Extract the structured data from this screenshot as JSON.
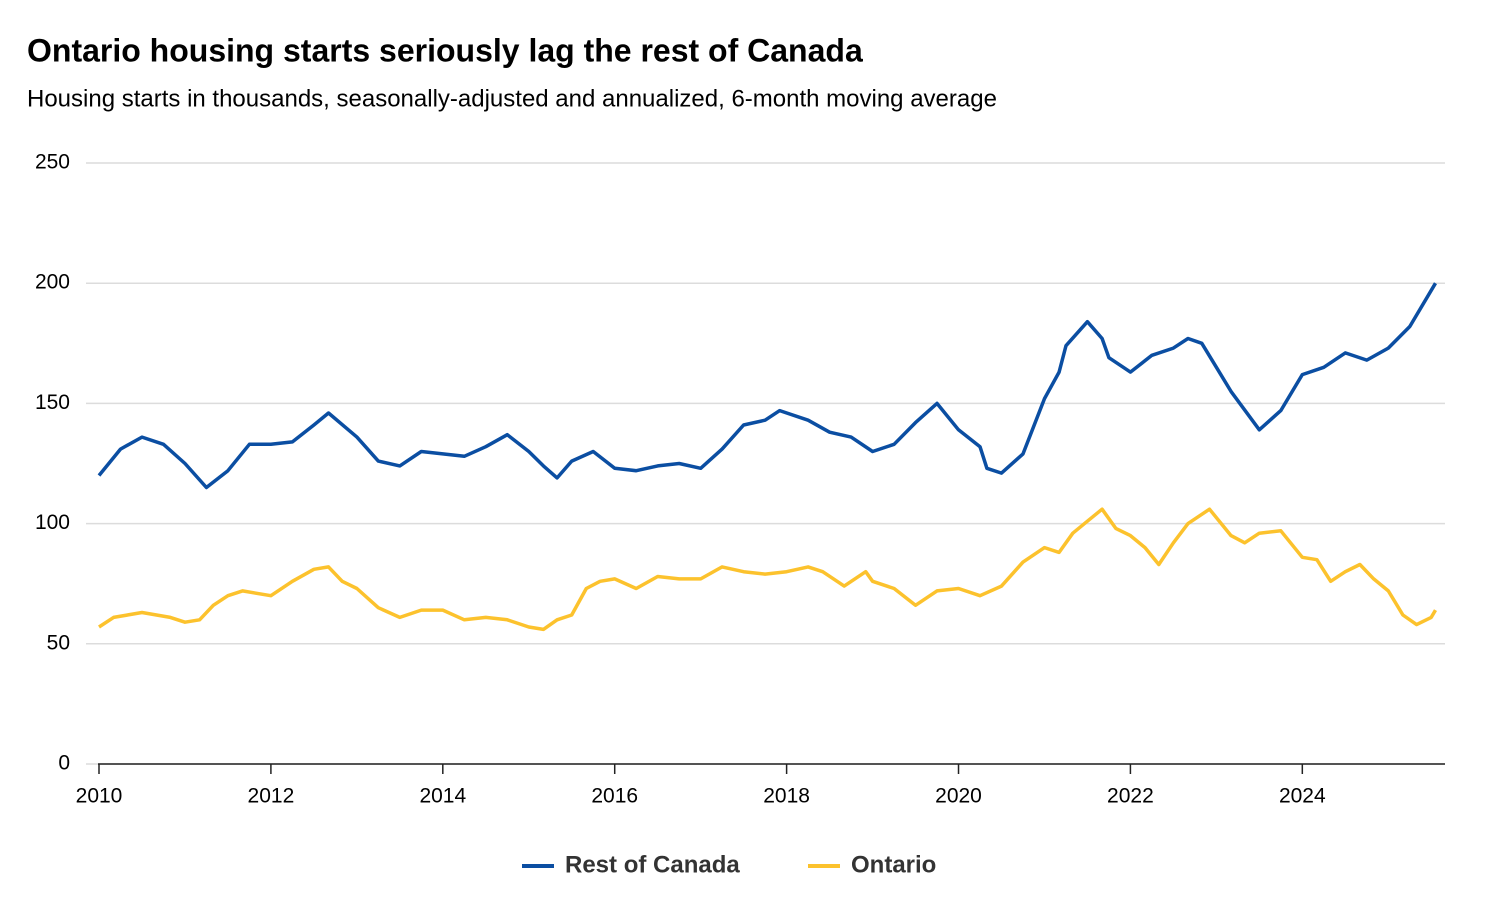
{
  "chart_data": {
    "type": "line",
    "title": "Ontario housing starts seriously lag the rest of Canada",
    "subtitle": "Housing starts in thousands, seasonally-adjusted and annualized, 6-month moving average",
    "xlim": [
      2010,
      2025.66
    ],
    "xticks": [
      2010,
      2012,
      2014,
      2016,
      2018,
      2020,
      2022,
      2024
    ],
    "ylim": [
      0,
      250
    ],
    "yticks": [
      0,
      50,
      100,
      150,
      200,
      250
    ],
    "grid": true,
    "legend": "bottom",
    "series": [
      {
        "name": "Rest of Canada",
        "color": "#0b4ea2",
        "x": [
          2010.0,
          2010.25,
          2010.5,
          2010.75,
          2011.0,
          2011.25,
          2011.5,
          2011.75,
          2012.0,
          2012.25,
          2012.5,
          2012.67,
          2013.0,
          2013.25,
          2013.5,
          2013.75,
          2014.0,
          2014.25,
          2014.5,
          2014.75,
          2015.0,
          2015.17,
          2015.33,
          2015.5,
          2015.75,
          2016.0,
          2016.25,
          2016.5,
          2016.75,
          2017.0,
          2017.25,
          2017.5,
          2017.75,
          2017.92,
          2018.25,
          2018.5,
          2018.75,
          2019.0,
          2019.25,
          2019.5,
          2019.75,
          2020.0,
          2020.25,
          2020.33,
          2020.5,
          2020.75,
          2021.0,
          2021.17,
          2021.25,
          2021.5,
          2021.67,
          2021.75,
          2022.0,
          2022.25,
          2022.5,
          2022.67,
          2022.83,
          2023.0,
          2023.17,
          2023.5,
          2023.75,
          2024.0,
          2024.25,
          2024.5,
          2024.75,
          2025.0,
          2025.25,
          2025.55
        ],
        "values": [
          120,
          131,
          136,
          133,
          125,
          115,
          122,
          133,
          133,
          134,
          141,
          146,
          136,
          126,
          124,
          130,
          129,
          128,
          132,
          137,
          130,
          124,
          119,
          126,
          130,
          123,
          122,
          124,
          125,
          123,
          131,
          141,
          143,
          147,
          143,
          138,
          136,
          130,
          133,
          142,
          150,
          139,
          132,
          123,
          121,
          129,
          152,
          163,
          174,
          184,
          177,
          169,
          163,
          170,
          173,
          177,
          175,
          165,
          155,
          139,
          147,
          162,
          165,
          171,
          168,
          173,
          182,
          200
        ]
      },
      {
        "name": "Ontario",
        "color": "#fcc22d",
        "x": [
          2010.0,
          2010.17,
          2010.5,
          2010.83,
          2011.0,
          2011.17,
          2011.33,
          2011.5,
          2011.67,
          2012.0,
          2012.25,
          2012.5,
          2012.67,
          2012.83,
          2013.0,
          2013.25,
          2013.5,
          2013.75,
          2014.0,
          2014.25,
          2014.5,
          2014.75,
          2015.0,
          2015.17,
          2015.33,
          2015.5,
          2015.67,
          2015.83,
          2016.0,
          2016.25,
          2016.5,
          2016.75,
          2017.0,
          2017.25,
          2017.5,
          2017.75,
          2018.0,
          2018.25,
          2018.42,
          2018.67,
          2018.92,
          2019.0,
          2019.25,
          2019.5,
          2019.75,
          2020.0,
          2020.25,
          2020.5,
          2020.75,
          2021.0,
          2021.17,
          2021.33,
          2021.5,
          2021.67,
          2021.83,
          2022.0,
          2022.17,
          2022.33,
          2022.5,
          2022.67,
          2022.92,
          2023.17,
          2023.33,
          2023.5,
          2023.75,
          2024.0,
          2024.17,
          2024.33,
          2024.5,
          2024.67,
          2024.83,
          2025.0,
          2025.17,
          2025.33,
          2025.5,
          2025.55
        ],
        "values": [
          57,
          61,
          63,
          61,
          59,
          60,
          66,
          70,
          72,
          70,
          76,
          81,
          82,
          76,
          73,
          65,
          61,
          64,
          64,
          60,
          61,
          60,
          57,
          56,
          60,
          62,
          73,
          76,
          77,
          73,
          78,
          77,
          77,
          82,
          80,
          79,
          80,
          82,
          80,
          74,
          80,
          76,
          73,
          66,
          72,
          73,
          70,
          74,
          84,
          90,
          88,
          96,
          101,
          106,
          98,
          95,
          90,
          83,
          92,
          100,
          106,
          95,
          92,
          96,
          97,
          86,
          85,
          76,
          80,
          83,
          77,
          72,
          62,
          58,
          61,
          64
        ]
      }
    ]
  }
}
